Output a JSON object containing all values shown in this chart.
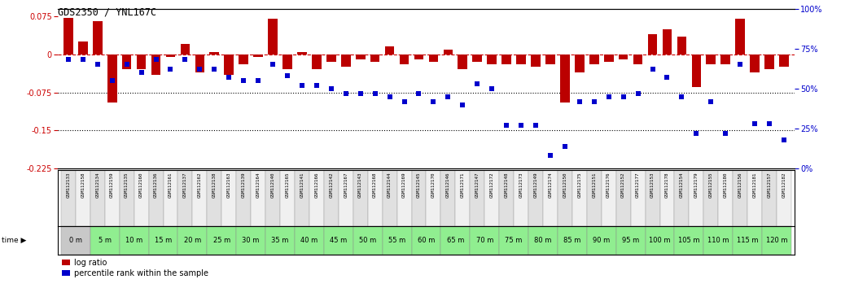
{
  "title": "GDS2350 / YNL167C",
  "sample_ids": [
    "GSM112133",
    "GSM112158",
    "GSM112134",
    "GSM112159",
    "GSM112135",
    "GSM112160",
    "GSM112136",
    "GSM112161",
    "GSM112137",
    "GSM112162",
    "GSM112138",
    "GSM112163",
    "GSM112139",
    "GSM112164",
    "GSM112140",
    "GSM112165",
    "GSM112141",
    "GSM112166",
    "GSM112142",
    "GSM112167",
    "GSM112143",
    "GSM112168",
    "GSM112144",
    "GSM112169",
    "GSM112145",
    "GSM112170",
    "GSM112146",
    "GSM112171",
    "GSM112147",
    "GSM112172",
    "GSM112148",
    "GSM112173",
    "GSM112149",
    "GSM112174",
    "GSM112150",
    "GSM112175",
    "GSM112151",
    "GSM112176",
    "GSM112152",
    "GSM112177",
    "GSM112153",
    "GSM112178",
    "GSM112154",
    "GSM112179",
    "GSM112155",
    "GSM112180",
    "GSM112156",
    "GSM112181",
    "GSM112157",
    "GSM112182"
  ],
  "time_labels": [
    "0 m",
    "5 m",
    "10 m",
    "15 m",
    "20 m",
    "25 m",
    "30 m",
    "35 m",
    "40 m",
    "45 m",
    "50 m",
    "55 m",
    "60 m",
    "65 m",
    "70 m",
    "75 m",
    "80 m",
    "85 m",
    "90 m",
    "95 m",
    "100 m",
    "105 m",
    "110 m",
    "115 m",
    "120 m"
  ],
  "log_ratio": [
    0.072,
    0.025,
    0.065,
    -0.095,
    -0.03,
    -0.03,
    -0.04,
    -0.005,
    0.02,
    -0.035,
    0.005,
    -0.04,
    -0.02,
    -0.005,
    0.07,
    -0.03,
    0.005,
    -0.03,
    -0.015,
    -0.025,
    -0.01,
    -0.015,
    0.015,
    -0.02,
    -0.01,
    -0.015,
    0.01,
    -0.03,
    -0.015,
    -0.02,
    -0.02,
    -0.02,
    -0.025,
    -0.02,
    -0.095,
    -0.035,
    -0.02,
    -0.015,
    -0.01,
    -0.02,
    0.04,
    0.05,
    0.035,
    -0.065,
    -0.02,
    -0.02,
    0.07,
    -0.035,
    -0.03,
    -0.025
  ],
  "percentile_rank": [
    68,
    68,
    65,
    55,
    65,
    60,
    68,
    62,
    68,
    62,
    62,
    57,
    55,
    55,
    65,
    58,
    52,
    52,
    50,
    47,
    47,
    47,
    45,
    42,
    47,
    42,
    45,
    40,
    53,
    50,
    27,
    27,
    27,
    8,
    14,
    42,
    42,
    45,
    45,
    47,
    62,
    57,
    45,
    22,
    42,
    22,
    65,
    28,
    28,
    18
  ],
  "ylim_left": [
    -0.225,
    0.09
  ],
  "ylim_right": [
    0,
    100
  ],
  "hline_zero": 0,
  "hlines_dotted": [
    -0.075,
    -0.15
  ],
  "right_ticks": [
    0,
    25,
    50,
    75,
    100
  ],
  "left_ticks": [
    -0.225,
    -0.15,
    -0.075,
    0,
    0.075
  ],
  "bar_color": "#bb0000",
  "dot_color": "#0000cc",
  "zero_line_color": "#cc0000",
  "dotted_line_color": "#000000",
  "title_color": "#000000",
  "bg_color": "#ffffff",
  "axis_label_color_left": "#cc0000",
  "axis_label_color_right": "#0000cc",
  "sample_box_color_odd": "#e0e0e0",
  "sample_box_color_even": "#f0f0f0",
  "time_color_0m": "#c8c8c8",
  "time_color_rest": "#90ee90"
}
